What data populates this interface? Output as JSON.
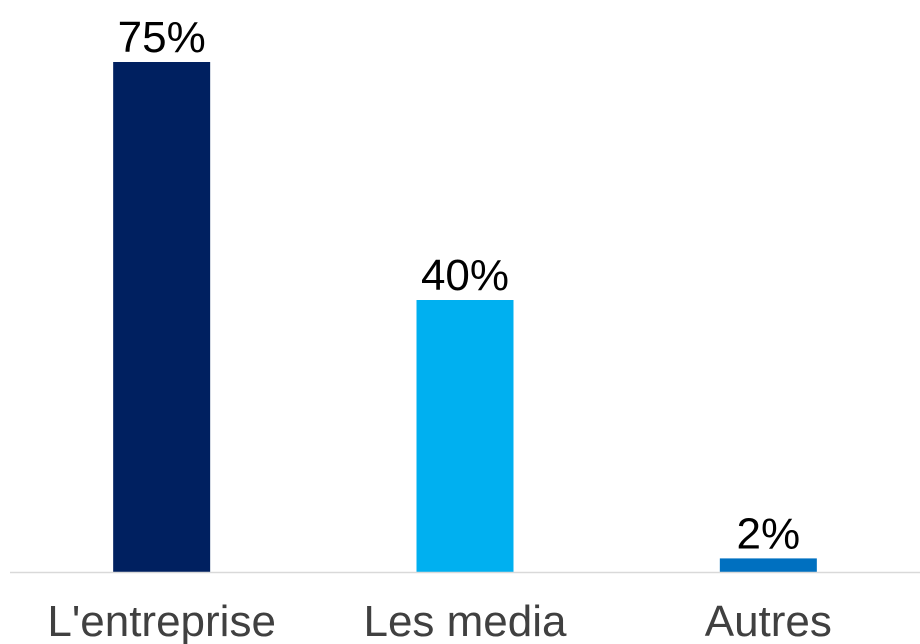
{
  "chart_data": {
    "type": "bar",
    "categories": [
      "L'entreprise",
      "Les media",
      "Autres"
    ],
    "values": [
      75,
      40,
      2
    ],
    "value_labels": [
      "75%",
      "40%",
      "2%"
    ],
    "colors": [
      "#002060",
      "#00b0f0",
      "#0070c0"
    ],
    "axis_color": "#d9d9d9",
    "ylim": [
      0,
      75
    ],
    "grid": false,
    "legend": "none",
    "title": "",
    "xlabel": "",
    "ylabel": ""
  }
}
